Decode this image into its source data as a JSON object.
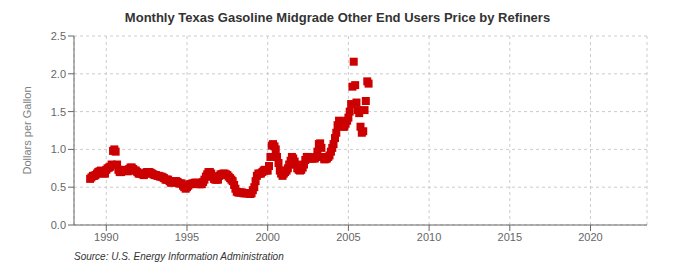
{
  "chart_data": {
    "type": "scatter",
    "title": "Monthly Texas Gasoline Midgrade Other End Users Price by Refiners",
    "ylabel": "Dollars per Gallon",
    "annotations": [
      "Source: U.S. Energy Information Administration"
    ],
    "color": "#cc0000",
    "marker": "square",
    "grid": true,
    "xlim": [
      1988.0,
      2023.5
    ],
    "ylim": [
      0.0,
      2.5
    ],
    "xticks": [
      1990,
      1995,
      2000,
      2005,
      2010,
      2015,
      2020
    ],
    "yticks": [
      {
        "value": 0.0,
        "label": "0.0"
      },
      0.5,
      {
        "value": 1.0,
        "label": "1.0"
      },
      1.5,
      {
        "value": 2.0,
        "label": "2.0"
      },
      2.5
    ],
    "x": [
      1989.0,
      1989.08,
      1989.17,
      1989.25,
      1989.33,
      1989.42,
      1989.5,
      1989.58,
      1989.67,
      1989.75,
      1989.83,
      1989.92,
      1990.0,
      1990.08,
      1990.17,
      1990.25,
      1990.33,
      1990.42,
      1990.5,
      1990.58,
      1990.67,
      1990.75,
      1990.83,
      1990.92,
      1991.0,
      1991.08,
      1991.17,
      1991.25,
      1991.33,
      1991.42,
      1991.5,
      1991.58,
      1991.67,
      1991.75,
      1991.83,
      1991.92,
      1992.0,
      1992.08,
      1992.17,
      1992.25,
      1992.33,
      1992.42,
      1992.5,
      1992.58,
      1992.67,
      1992.75,
      1992.83,
      1992.92,
      1993.0,
      1993.08,
      1993.17,
      1993.25,
      1993.33,
      1993.42,
      1993.5,
      1993.58,
      1993.67,
      1993.75,
      1993.83,
      1993.92,
      1994.0,
      1994.08,
      1994.17,
      1994.25,
      1994.33,
      1994.42,
      1994.5,
      1994.58,
      1994.67,
      1994.75,
      1994.83,
      1994.92,
      1995.0,
      1995.08,
      1995.17,
      1995.25,
      1995.33,
      1995.42,
      1995.5,
      1995.58,
      1995.67,
      1995.75,
      1995.83,
      1995.92,
      1996.0,
      1996.08,
      1996.17,
      1996.25,
      1996.33,
      1996.42,
      1996.5,
      1996.58,
      1996.67,
      1996.75,
      1996.83,
      1996.92,
      1997.0,
      1997.08,
      1997.17,
      1997.25,
      1997.33,
      1997.42,
      1997.5,
      1997.58,
      1997.67,
      1997.75,
      1997.83,
      1997.92,
      1998.0,
      1998.08,
      1998.17,
      1998.25,
      1998.33,
      1998.42,
      1998.5,
      1998.58,
      1998.67,
      1998.75,
      1998.83,
      1998.92,
      1999.0,
      1999.08,
      1999.17,
      1999.25,
      1999.33,
      1999.42,
      1999.5,
      1999.58,
      1999.67,
      1999.75,
      1999.83,
      1999.92,
      2000.0,
      2000.08,
      2000.17,
      2000.25,
      2000.33,
      2000.42,
      2000.5,
      2000.58,
      2000.67,
      2000.75,
      2000.83,
      2000.92,
      2001.0,
      2001.08,
      2001.17,
      2001.25,
      2001.33,
      2001.42,
      2001.5,
      2001.58,
      2001.67,
      2001.75,
      2001.83,
      2001.92,
      2002.0,
      2002.08,
      2002.17,
      2002.25,
      2002.33,
      2002.42,
      2002.5,
      2002.58,
      2002.67,
      2002.75,
      2002.83,
      2002.92,
      2003.0,
      2003.08,
      2003.17,
      2003.25,
      2003.33,
      2003.42,
      2003.5,
      2003.58,
      2003.67,
      2003.75,
      2003.83,
      2003.92,
      2004.0,
      2004.08,
      2004.17,
      2004.25,
      2004.33,
      2004.42,
      2004.5,
      2004.58,
      2004.67,
      2004.75,
      2004.83,
      2004.92,
      2005.0,
      2005.08,
      2005.17,
      2005.25,
      2005.33,
      2005.42,
      2005.5,
      2005.58,
      2005.67,
      2005.75,
      2005.83,
      2005.92,
      2006.0,
      2006.08,
      2006.17,
      2006.25
    ],
    "values": [
      0.61,
      0.63,
      0.65,
      0.65,
      0.66,
      0.68,
      0.7,
      0.71,
      0.72,
      0.7,
      0.68,
      0.68,
      0.73,
      0.75,
      0.76,
      0.77,
      0.8,
      0.98,
      1.0,
      0.97,
      0.8,
      0.73,
      0.7,
      0.7,
      0.73,
      0.72,
      0.72,
      0.72,
      0.71,
      0.74,
      0.76,
      0.76,
      0.74,
      0.72,
      0.72,
      0.7,
      0.68,
      0.68,
      0.68,
      0.67,
      0.66,
      0.68,
      0.7,
      0.7,
      0.7,
      0.69,
      0.68,
      0.67,
      0.66,
      0.66,
      0.65,
      0.65,
      0.64,
      0.64,
      0.63,
      0.62,
      0.6,
      0.6,
      0.6,
      0.58,
      0.56,
      0.56,
      0.57,
      0.58,
      0.58,
      0.57,
      0.55,
      0.55,
      0.55,
      0.52,
      0.5,
      0.48,
      0.5,
      0.52,
      0.54,
      0.54,
      0.55,
      0.55,
      0.56,
      0.56,
      0.55,
      0.54,
      0.54,
      0.54,
      0.57,
      0.6,
      0.64,
      0.67,
      0.7,
      0.7,
      0.68,
      0.64,
      0.61,
      0.6,
      0.6,
      0.6,
      0.65,
      0.67,
      0.67,
      0.68,
      0.68,
      0.67,
      0.66,
      0.64,
      0.62,
      0.6,
      0.58,
      0.53,
      0.48,
      0.44,
      0.43,
      0.43,
      0.43,
      0.43,
      0.42,
      0.42,
      0.42,
      0.42,
      0.42,
      0.41,
      0.42,
      0.46,
      0.5,
      0.58,
      0.65,
      0.68,
      0.68,
      0.68,
      0.7,
      0.72,
      0.73,
      0.72,
      0.72,
      0.78,
      0.9,
      1.05,
      1.07,
      1.04,
      1.0,
      0.9,
      0.82,
      0.72,
      0.68,
      0.65,
      0.68,
      0.7,
      0.72,
      0.75,
      0.8,
      0.85,
      0.9,
      0.88,
      0.84,
      0.8,
      0.75,
      0.73,
      0.72,
      0.73,
      0.76,
      0.8,
      0.86,
      0.9,
      0.9,
      0.88,
      0.88,
      0.88,
      0.88,
      0.88,
      0.9,
      0.97,
      1.07,
      1.08,
      1.02,
      0.9,
      0.87,
      0.87,
      0.88,
      0.9,
      0.92,
      0.97,
      1.02,
      1.07,
      1.15,
      1.22,
      1.32,
      1.38,
      1.36,
      1.32,
      1.3,
      1.3,
      1.34,
      1.38,
      1.42,
      1.5,
      1.6,
      1.83,
      2.16,
      1.85,
      1.62,
      1.52,
      1.48,
      1.3,
      1.22,
      1.24,
      1.52,
      1.64,
      1.9,
      1.87
    ]
  }
}
